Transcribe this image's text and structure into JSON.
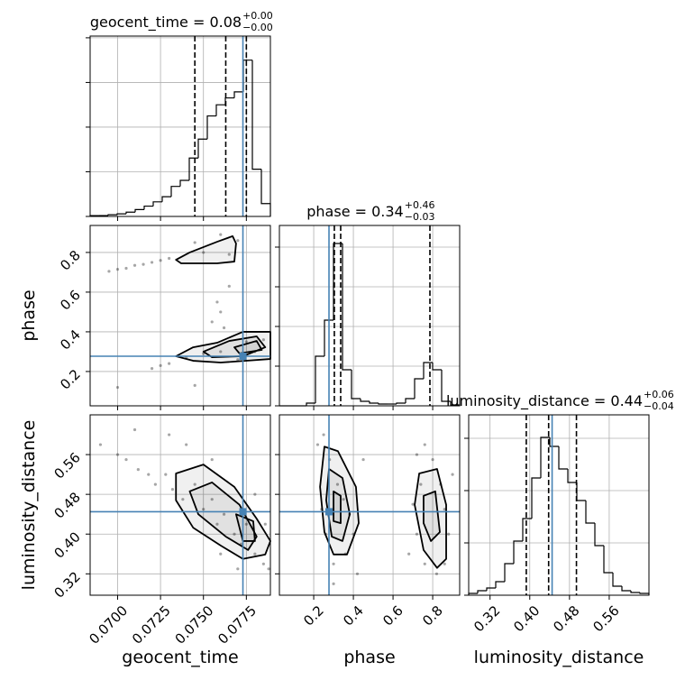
{
  "chart_data": {
    "type": "corner",
    "truth_color": "#4682b4",
    "grid": true,
    "params": [
      {
        "name": "geocent_time",
        "title": {
          "text": "geocent_time = 0.08",
          "plus": "+0.00",
          "minus": "−0.00"
        },
        "lim": [
          0.0684,
          0.0789
        ],
        "ticks": [
          {
            "value": 0.07,
            "label": "0.0700"
          },
          0.0725,
          {
            "value": 0.075,
            "label": "0.0750"
          },
          0.0775
        ],
        "truth": 0.0773,
        "quantiles": [
          0.0745,
          0.0763,
          0.0775
        ],
        "hist": {
          "bins": [
            0.0684,
            0.068925,
            0.06945,
            0.069975,
            0.0705,
            0.071025,
            0.07155,
            0.072075,
            0.0726,
            0.073125,
            0.07365,
            0.074175,
            0.0747,
            0.075225,
            0.07575,
            0.076275,
            0.0768,
            0.077325,
            0.07785,
            0.078375,
            0.0789
          ],
          "counts": [
            1,
            1,
            2,
            3,
            5,
            8,
            12,
            17,
            23,
            35,
            42,
            68,
            90,
            117,
            130,
            138,
            145,
            182,
            55,
            15
          ],
          "ylim": [
            0,
            210
          ],
          "yticks": [
            0,
            52,
            104,
            156,
            208
          ]
        }
      },
      {
        "name": "phase",
        "title": {
          "text": "phase = 0.34",
          "plus": "+0.46",
          "minus": "−0.03"
        },
        "lim": [
          0.027,
          0.936
        ],
        "ticks": [
          0.2,
          0.4,
          0.6,
          0.8
        ],
        "truth": 0.277,
        "quantiles": [
          0.304,
          0.336,
          0.786
        ],
        "hist": {
          "bins": [
            0.027,
            0.07245,
            0.1179,
            0.16335,
            0.2088,
            0.25425,
            0.2997,
            0.34515,
            0.3906,
            0.43605,
            0.4815,
            0.52695,
            0.5724,
            0.61785,
            0.6633,
            0.70875,
            0.7542,
            0.79965,
            0.8451,
            0.89055,
            0.936
          ],
          "counts": [
            0,
            0,
            0,
            3,
            55,
            95,
            180,
            40,
            8,
            5,
            3,
            2,
            2,
            3,
            8,
            30,
            48,
            40,
            5,
            1
          ],
          "ylim": [
            0,
            200
          ],
          "yticks": [
            0,
            44,
            88,
            132,
            176
          ]
        }
      },
      {
        "name": "luminosity_distance",
        "title": {
          "text": "luminosity_distance = 0.44",
          "plus": "+0.06",
          "minus": "−0.04"
        },
        "lim": [
          0.277,
          0.64
        ],
        "ticks": [
          0.32,
          {
            "value": 0.4,
            "label": "0.40"
          },
          0.48,
          0.56
        ],
        "truth": 0.445,
        "quantiles": [
          0.393,
          0.438,
          0.494
        ],
        "hist": {
          "bins": [
            0.277,
            0.29515,
            0.3133,
            0.33145,
            0.3496,
            0.36775,
            0.3859,
            0.40405,
            0.4222,
            0.44035,
            0.4585,
            0.47665,
            0.4948,
            0.51295,
            0.5311,
            0.54925,
            0.5674,
            0.58555,
            0.6037,
            0.62185,
            0.64
          ],
          "counts": [
            2,
            5,
            8,
            15,
            35,
            60,
            85,
            130,
            175,
            165,
            140,
            125,
            105,
            80,
            55,
            25,
            10,
            5,
            3,
            2
          ],
          "ylim": [
            0,
            200
          ],
          "yticks": [
            0,
            58,
            116,
            174
          ]
        }
      }
    ],
    "pairs": [
      {
        "x_param": 0,
        "y_param": 1,
        "points": {
          "x": [
            0.0695,
            0.07,
            0.0705,
            0.071,
            0.0715,
            0.072,
            0.0725,
            0.073,
            0.0745,
            0.076,
            0.077,
            0.0765,
            0.075,
            0.072,
            0.0725,
            0.073,
            0.074,
            0.075,
            0.076,
            0.0775,
            0.0785,
            0.077,
            0.078,
            0.0755,
            0.076,
            0.0758,
            0.0762,
            0.07,
            0.0745,
            0.0765
          ],
          "y": [
            0.705,
            0.715,
            0.72,
            0.735,
            0.74,
            0.75,
            0.76,
            0.77,
            0.85,
            0.89,
            0.86,
            0.79,
            0.8,
            0.215,
            0.23,
            0.24,
            0.27,
            0.29,
            0.3,
            0.35,
            0.36,
            0.26,
            0.3,
            0.45,
            0.5,
            0.55,
            0.42,
            0.12,
            0.13,
            0.63
          ]
        },
        "contours": [
          {
            "x": [
              0.0734,
              0.0742,
              0.0758,
              0.0767,
              0.0769,
              0.0768,
              0.0758,
              0.0737
            ],
            "y": [
              0.763,
              0.8,
              0.854,
              0.882,
              0.845,
              0.754,
              0.745,
              0.745
            ]
          },
          {
            "x": [
              0.0734,
              0.0744,
              0.0758,
              0.0773,
              0.0789,
              0.0789,
              0.076,
              0.0744
            ],
            "y": [
              0.277,
              0.322,
              0.345,
              0.4,
              0.4,
              0.263,
              0.245,
              0.254
            ]
          },
          {
            "x": [
              0.075,
              0.0765,
              0.0781,
              0.0786,
              0.0773,
              0.0755
            ],
            "y": [
              0.3,
              0.354,
              0.377,
              0.322,
              0.277,
              0.272
            ]
          },
          {
            "x": [
              0.0768,
              0.0781,
              0.0784,
              0.0771
            ],
            "y": [
              0.322,
              0.354,
              0.309,
              0.291
            ]
          }
        ]
      },
      {
        "x_param": 0,
        "y_param": 2,
        "points": {
          "x": [
            0.069,
            0.07,
            0.0705,
            0.0712,
            0.0718,
            0.0722,
            0.0728,
            0.0732,
            0.0738,
            0.0745,
            0.075,
            0.0755,
            0.0758,
            0.0762,
            0.0768,
            0.0772,
            0.0775,
            0.078,
            0.0785,
            0.0788,
            0.077,
            0.076,
            0.074,
            0.073,
            0.071,
            0.0755,
            0.078,
            0.0786
          ],
          "y": [
            0.58,
            0.56,
            0.55,
            0.53,
            0.52,
            0.5,
            0.52,
            0.49,
            0.47,
            0.5,
            0.45,
            0.47,
            0.42,
            0.44,
            0.4,
            0.38,
            0.42,
            0.36,
            0.34,
            0.33,
            0.33,
            0.36,
            0.58,
            0.6,
            0.61,
            0.55,
            0.48,
            0.42
          ]
        },
        "contours": [
          {
            "x": [
              0.0734,
              0.075,
              0.0768,
              0.0781,
              0.0789,
              0.0786,
              0.0773,
              0.076,
              0.0744,
              0.0734
            ],
            "y": [
              0.522,
              0.54,
              0.495,
              0.431,
              0.386,
              0.359,
              0.35,
              0.377,
              0.413,
              0.468
            ]
          },
          {
            "x": [
              0.0742,
              0.0755,
              0.0771,
              0.0781,
              0.0776,
              0.0763,
              0.0747
            ],
            "y": [
              0.486,
              0.504,
              0.459,
              0.395,
              0.368,
              0.395,
              0.44
            ]
          },
          {
            "x": [
              0.0769,
              0.0779,
              0.078,
              0.0773
            ],
            "y": [
              0.44,
              0.426,
              0.386,
              0.386
            ]
          }
        ]
      },
      {
        "x_param": 1,
        "y_param": 2,
        "points": {
          "x": [
            0.22,
            0.25,
            0.28,
            0.32,
            0.35,
            0.38,
            0.4,
            0.36,
            0.3,
            0.26,
            0.24,
            0.42,
            0.3,
            0.45,
            0.72,
            0.76,
            0.8,
            0.84,
            0.86,
            0.88,
            0.86,
            0.82,
            0.76,
            0.72,
            0.7,
            0.74,
            0.9,
            0.68
          ],
          "y": [
            0.58,
            0.6,
            0.55,
            0.5,
            0.47,
            0.44,
            0.4,
            0.36,
            0.34,
            0.4,
            0.45,
            0.32,
            0.3,
            0.55,
            0.56,
            0.58,
            0.55,
            0.5,
            0.45,
            0.4,
            0.34,
            0.32,
            0.34,
            0.4,
            0.46,
            0.5,
            0.52,
            0.36
          ]
        },
        "contours": [
          {
            "x": [
              0.254,
              0.322,
              0.413,
              0.427,
              0.368,
              0.3,
              0.254,
              0.232
            ],
            "y": [
              0.576,
              0.567,
              0.495,
              0.422,
              0.359,
              0.359,
              0.404,
              0.495
            ]
          },
          {
            "x": [
              0.277,
              0.345,
              0.382,
              0.345,
              0.291,
              0.263
            ],
            "y": [
              0.531,
              0.513,
              0.44,
              0.386,
              0.395,
              0.468
            ]
          },
          {
            "x": [
              0.3,
              0.336,
              0.336,
              0.3
            ],
            "y": [
              0.486,
              0.477,
              0.422,
              0.426
            ]
          },
          {
            "x": [
              0.732,
              0.822,
              0.868,
              0.868,
              0.822,
              0.754,
              0.709
            ],
            "y": [
              0.522,
              0.531,
              0.459,
              0.35,
              0.332,
              0.368,
              0.459
            ]
          },
          {
            "x": [
              0.754,
              0.813,
              0.836,
              0.791,
              0.754
            ],
            "y": [
              0.477,
              0.486,
              0.404,
              0.386,
              0.422
            ]
          }
        ]
      }
    ]
  }
}
